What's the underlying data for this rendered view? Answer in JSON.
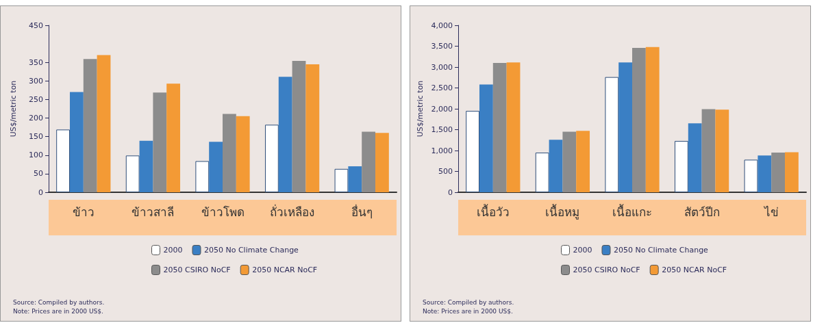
{
  "chart_data": [
    {
      "type": "bar",
      "ylabel": "US$/metric ton",
      "categories": [
        "ข้าว",
        "ข้าวสาลี",
        "ข้าวโพด",
        "ถั่วเหลือง",
        "อื่นๆ"
      ],
      "series": [
        {
          "name": "2000",
          "color": "#ffffff",
          "values": [
            169,
            99,
            84,
            182,
            63
          ]
        },
        {
          "name": "2050 No Climate Change",
          "color": "#3a7fc4",
          "values": [
            270,
            139,
            136,
            311,
            70
          ]
        },
        {
          "name": "2050 CSIRO NoCF",
          "color": "#8c8c8c",
          "values": [
            359,
            269,
            211,
            354,
            163
          ]
        },
        {
          "name": "2050 NCAR NoCF",
          "color": "#f39a35",
          "values": [
            370,
            293,
            205,
            345,
            160
          ]
        }
      ],
      "ylim": [
        0,
        450
      ],
      "yticks": [
        0,
        50,
        100,
        150,
        200,
        250,
        300,
        350,
        450
      ],
      "grid": false,
      "legend": "bottom",
      "annotations": [
        "Source: Compiled by authors.",
        "Note: Prices are in 2000 US$."
      ]
    },
    {
      "type": "bar",
      "ylabel": "US$/metric ton",
      "categories": [
        "เนื้อวัว",
        "เนื้อหมู",
        "เนื้อแกะ",
        "สัตว์ปีก",
        "ไข่"
      ],
      "series": [
        {
          "name": "2000",
          "color": "#ffffff",
          "values": [
            1950,
            950,
            2760,
            1230,
            780
          ]
        },
        {
          "name": "2050 No Climate Change",
          "color": "#3a7fc4",
          "values": [
            2580,
            1260,
            3110,
            1650,
            880
          ]
        },
        {
          "name": "2050 CSIRO NoCF",
          "color": "#8c8c8c",
          "values": [
            3100,
            1450,
            3460,
            1990,
            950
          ]
        },
        {
          "name": "2050 NCAR NoCF",
          "color": "#f39a35",
          "values": [
            3110,
            1470,
            3480,
            1980,
            960
          ]
        }
      ],
      "ylim": [
        0,
        4000
      ],
      "yticks": [
        {
          "value": 0,
          "label": "0"
        },
        {
          "value": 500,
          "label": "500"
        },
        {
          "value": 1000,
          "label": "1,000"
        },
        {
          "value": 1500,
          "label": "1,500"
        },
        {
          "value": 2000,
          "label": "2,000"
        },
        {
          "value": 2500,
          "label": "2,500"
        },
        {
          "value": 3000,
          "label": "3,000"
        },
        {
          "value": 3500,
          "label": "3,500"
        },
        {
          "value": 4000,
          "label": "4,000"
        }
      ],
      "grid": false,
      "legend": "bottom",
      "annotations": [
        "Source: Compiled by authors.",
        "Note: Prices are in 2000 US$."
      ]
    }
  ]
}
